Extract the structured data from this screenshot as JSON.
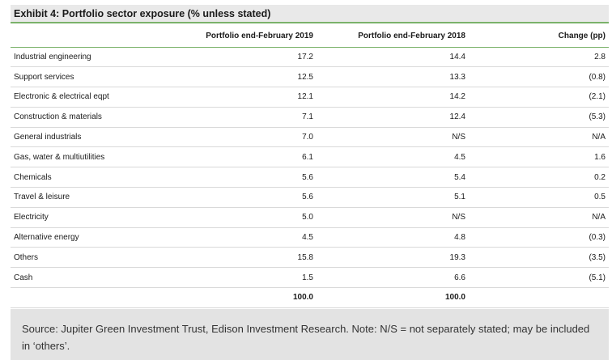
{
  "title": "Exhibit 4: Portfolio sector exposure (% unless stated)",
  "columns": [
    "",
    "Portfolio end-February 2019",
    "Portfolio end-February 2018",
    "Change (pp)"
  ],
  "rows": [
    {
      "sector": "Industrial engineering",
      "y2019": "17.2",
      "y2018": "14.4",
      "change": "2.8"
    },
    {
      "sector": "Support services",
      "y2019": "12.5",
      "y2018": "13.3",
      "change": "(0.8)"
    },
    {
      "sector": "Electronic & electrical eqpt",
      "y2019": "12.1",
      "y2018": "14.2",
      "change": "(2.1)"
    },
    {
      "sector": "Construction & materials",
      "y2019": "7.1",
      "y2018": "12.4",
      "change": "(5.3)"
    },
    {
      "sector": "General industrials",
      "y2019": "7.0",
      "y2018": "N/S",
      "change": "N/A"
    },
    {
      "sector": "Gas, water & multiutilities",
      "y2019": "6.1",
      "y2018": "4.5",
      "change": "1.6"
    },
    {
      "sector": "Chemicals",
      "y2019": "5.6",
      "y2018": "5.4",
      "change": "0.2"
    },
    {
      "sector": "Travel & leisure",
      "y2019": "5.6",
      "y2018": "5.1",
      "change": "0.5"
    },
    {
      "sector": "Electricity",
      "y2019": "5.0",
      "y2018": "N/S",
      "change": "N/A"
    },
    {
      "sector": "Alternative energy",
      "y2019": "4.5",
      "y2018": "4.8",
      "change": "(0.3)"
    },
    {
      "sector": "Others",
      "y2019": "15.8",
      "y2018": "19.3",
      "change": "(3.5)"
    },
    {
      "sector": "Cash",
      "y2019": "1.5",
      "y2018": "6.6",
      "change": "(5.1)"
    }
  ],
  "total": {
    "sector": "",
    "y2019": "100.0",
    "y2018": "100.0",
    "change": ""
  },
  "source": "Source: Jupiter Green Investment Trust, Edison Investment Research. Note: N/S = not separately stated; may be included in ‘others’."
}
